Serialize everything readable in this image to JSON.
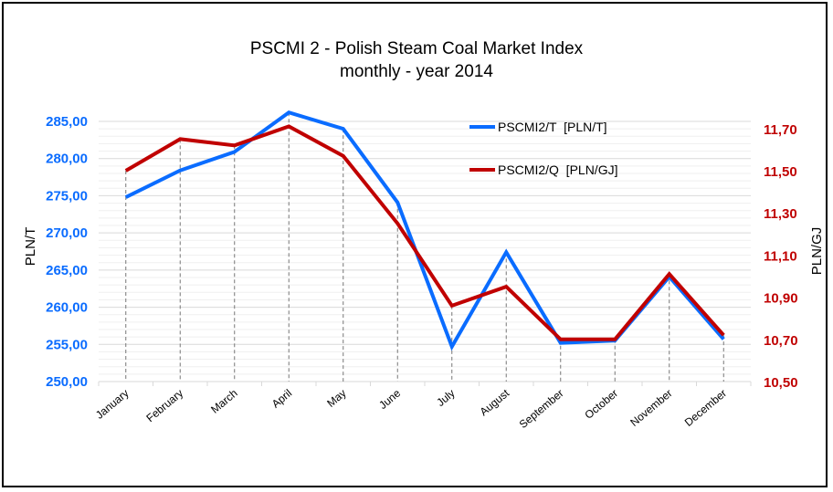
{
  "chart_data": {
    "type": "line",
    "title": "PSCMI 2 - Polish Steam Coal Market Index",
    "subtitle": "monthly - year 2014",
    "categories": [
      "January",
      "February",
      "March",
      "April",
      "May",
      "June",
      "July",
      "August",
      "September",
      "October",
      "November",
      "December"
    ],
    "series": [
      {
        "name": "PSCMI2/T  [PLN/T]",
        "axis": "left",
        "color": "#0a6cff",
        "values": [
          274.8,
          278.4,
          280.9,
          286.2,
          284.0,
          274.1,
          254.7,
          267.4,
          255.2,
          255.5,
          264.1,
          255.7
        ]
      },
      {
        "name": "PSCMI2/Q  [PLN/GJ]",
        "axis": "right",
        "color": "#c00000",
        "values": [
          11.5,
          11.65,
          11.62,
          11.71,
          11.57,
          11.25,
          10.86,
          10.95,
          10.7,
          10.7,
          11.01,
          10.72
        ]
      }
    ],
    "ylabel": "PLN/T",
    "y2label": "PLN/GJ",
    "ylim": [
      250,
      285
    ],
    "y2lim": [
      10.5,
      11.7
    ],
    "yticks": [
      "250,00",
      "255,00",
      "260,00",
      "265,00",
      "270,00",
      "275,00",
      "280,00",
      "285,00"
    ],
    "y2ticks": [
      "10,50",
      "10,70",
      "10,90",
      "11,10",
      "11,30",
      "11,50",
      "11,70"
    ],
    "left_axis_color": "#0a6cff",
    "right_axis_color": "#c00000",
    "grid": true,
    "legend": "top-right"
  }
}
